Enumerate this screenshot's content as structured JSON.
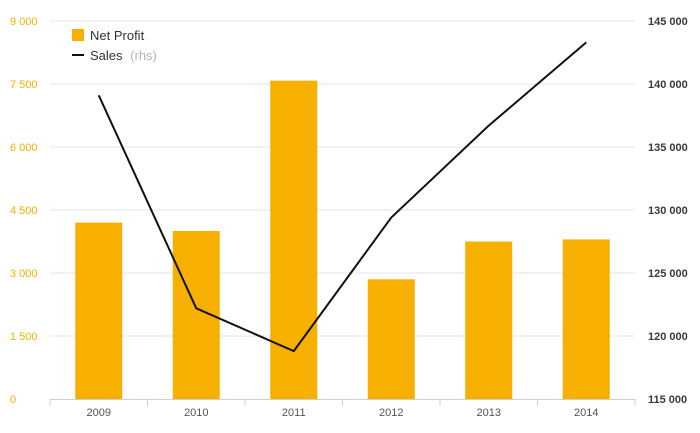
{
  "colors": {
    "bar": "#f8b000",
    "line": "#111111",
    "left_axis_text": "#f5b000",
    "right_axis_text": "#3a3a3a"
  },
  "legend": {
    "position": "top-left",
    "items": [
      {
        "label": "Net Profit",
        "suffix": "",
        "symbol": "square"
      },
      {
        "label": "Sales",
        "suffix": "(rhs)",
        "symbol": "line"
      }
    ]
  },
  "chart_data": {
    "type": "bar+line",
    "categories": [
      "2009",
      "2010",
      "2011",
      "2012",
      "2013",
      "2014"
    ],
    "series": [
      {
        "name": "Net Profit",
        "type": "bar",
        "axis": "left",
        "values": [
          4200,
          4000,
          7580,
          2850,
          3750,
          3800
        ]
      },
      {
        "name": "Sales",
        "type": "line",
        "axis": "right",
        "values": [
          139100,
          122200,
          118800,
          129400,
          136700,
          143300
        ]
      }
    ],
    "y_left": {
      "min": 0,
      "max": 9000,
      "ticks": [
        0,
        1500,
        3000,
        4500,
        6000,
        7500,
        9000
      ],
      "tick_labels": [
        "0",
        "1 500",
        "3 000",
        "4 500",
        "6 000",
        "7 500",
        "9 000"
      ]
    },
    "y_right": {
      "min": 115000,
      "max": 145000,
      "ticks": [
        115000,
        120000,
        125000,
        130000,
        135000,
        140000,
        145000
      ],
      "tick_labels": [
        "115 000",
        "120 000",
        "125 000",
        "130 000",
        "135 000",
        "140 000",
        "145 000"
      ]
    },
    "grid": true,
    "title": "",
    "xlabel": "",
    "ylabel": ""
  }
}
